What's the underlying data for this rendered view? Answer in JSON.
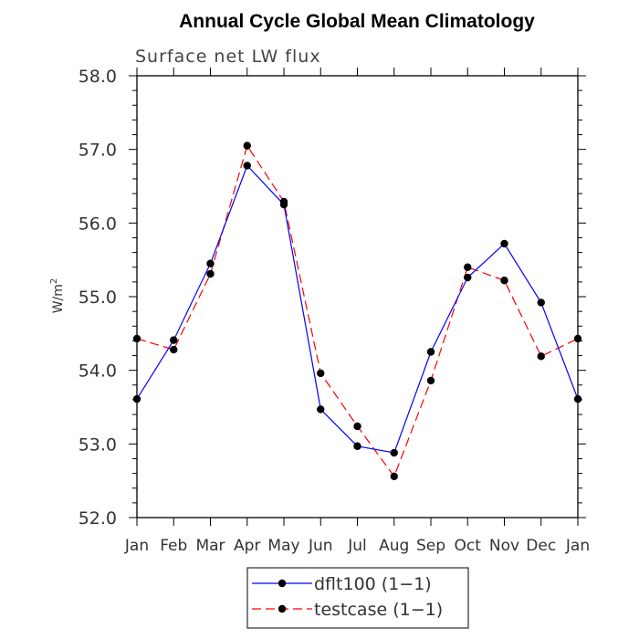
{
  "chart_data": {
    "type": "line",
    "title": "Annual Cycle Global Mean Climatology",
    "subtitle": "Surface net LW flux",
    "ylabel": "W/m",
    "ylabel_superscript": "2",
    "ylim": [
      52.0,
      58.0
    ],
    "yticks": [
      "52.0",
      "53.0",
      "54.0",
      "55.0",
      "56.0",
      "57.0",
      "58.0"
    ],
    "categories": [
      "Jan",
      "Feb",
      "Mar",
      "Apr",
      "May",
      "Jun",
      "Jul",
      "Aug",
      "Sep",
      "Oct",
      "Nov",
      "Dec",
      "Jan"
    ],
    "grid": false,
    "legend_position": "bottom",
    "series": [
      {
        "name": "dflt100 (1−1)",
        "color": "#0000ff",
        "dash": "solid",
        "values": [
          53.61,
          54.41,
          55.45,
          56.78,
          56.25,
          53.47,
          52.97,
          52.88,
          54.25,
          55.26,
          55.72,
          54.92,
          53.61
        ]
      },
      {
        "name": "testcase (1−1)",
        "color": "#ff0000",
        "dash": "dashed",
        "values": [
          54.43,
          54.28,
          55.31,
          57.05,
          56.29,
          53.96,
          53.24,
          52.56,
          53.86,
          55.4,
          55.22,
          54.19,
          54.43
        ]
      }
    ]
  }
}
